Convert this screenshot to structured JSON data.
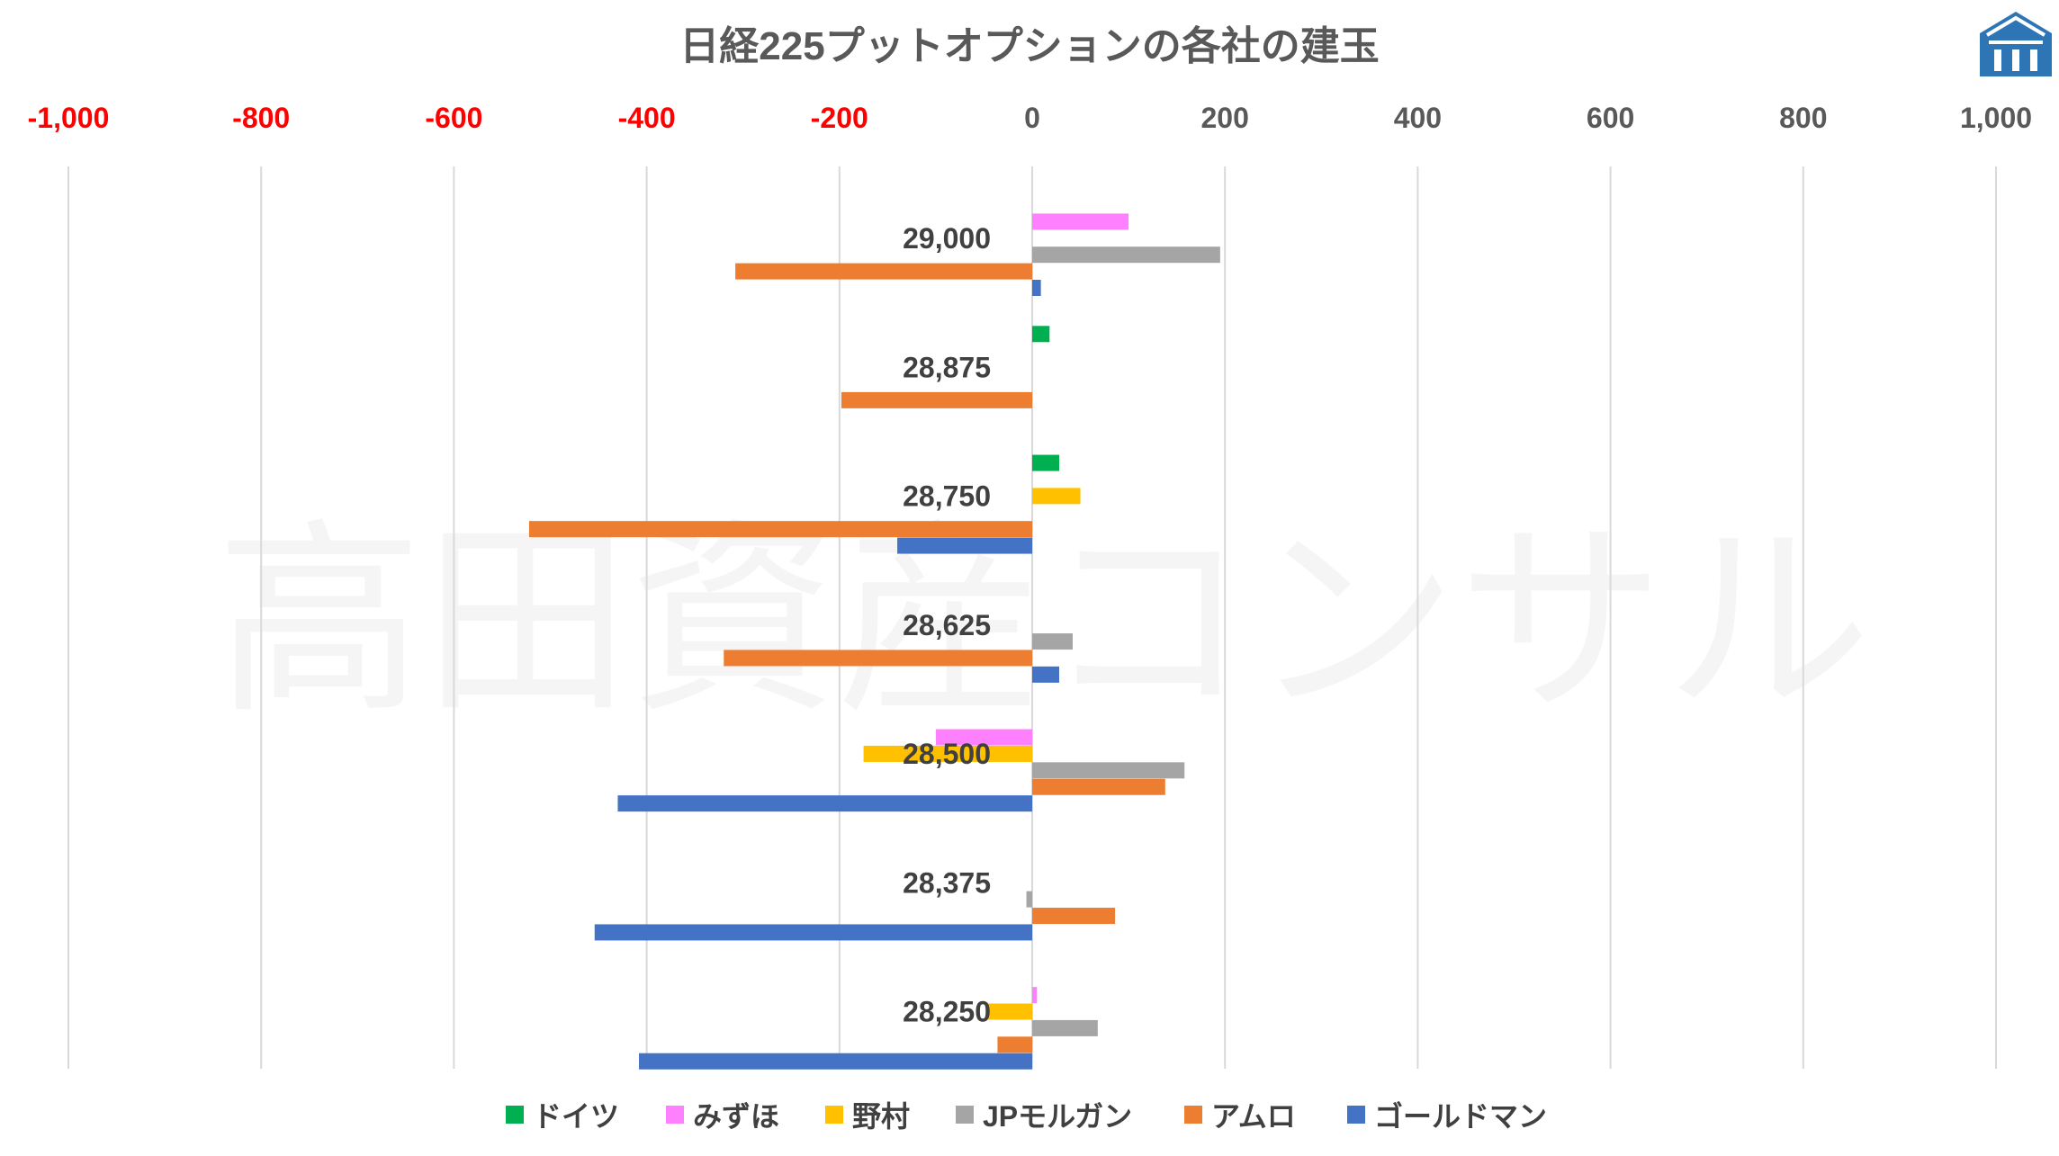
{
  "chart_data": {
    "type": "bar",
    "orientation": "horizontal",
    "title": "日経225プットオプションの各社の建玉",
    "xlim": [
      -1000,
      1000
    ],
    "x_ticks": [
      "-1,000",
      "-800",
      "-600",
      "-400",
      "-200",
      "0",
      "200",
      "400",
      "600",
      "800",
      "1,000"
    ],
    "x_tick_values": [
      -1000,
      -800,
      -600,
      -400,
      -200,
      0,
      200,
      400,
      600,
      800,
      1000
    ],
    "negative_tick_color": "#FF0000",
    "positive_tick_color": "#595959",
    "grid": true,
    "legend_position": "bottom",
    "categories": [
      "29,000",
      "28,875",
      "28,750",
      "28,625",
      "28,500",
      "28,375",
      "28,250"
    ],
    "series": [
      {
        "name": "ドイツ",
        "color": "#00B050",
        "values": [
          0,
          18,
          28,
          0,
          0,
          0,
          0
        ]
      },
      {
        "name": "みずほ",
        "color": "#FF80FF",
        "values": [
          100,
          0,
          0,
          0,
          -100,
          0,
          5
        ]
      },
      {
        "name": "野村",
        "color": "#FFC000",
        "values": [
          0,
          0,
          50,
          0,
          -175,
          0,
          -48
        ]
      },
      {
        "name": "JPモルガン",
        "color": "#A5A5A5",
        "values": [
          195,
          0,
          0,
          42,
          158,
          -6,
          68
        ]
      },
      {
        "name": "アムロ",
        "color": "#ED7D31",
        "values": [
          -308,
          -198,
          -522,
          -320,
          138,
          86,
          -36
        ]
      },
      {
        "name": "ゴールドマン",
        "color": "#4472C4",
        "values": [
          9,
          0,
          -140,
          28,
          -430,
          -454,
          -408
        ]
      }
    ]
  },
  "watermark": {
    "text": "高田資産コンサル"
  },
  "logo": {
    "name": "logo-icon",
    "color": "#2E75B6"
  }
}
